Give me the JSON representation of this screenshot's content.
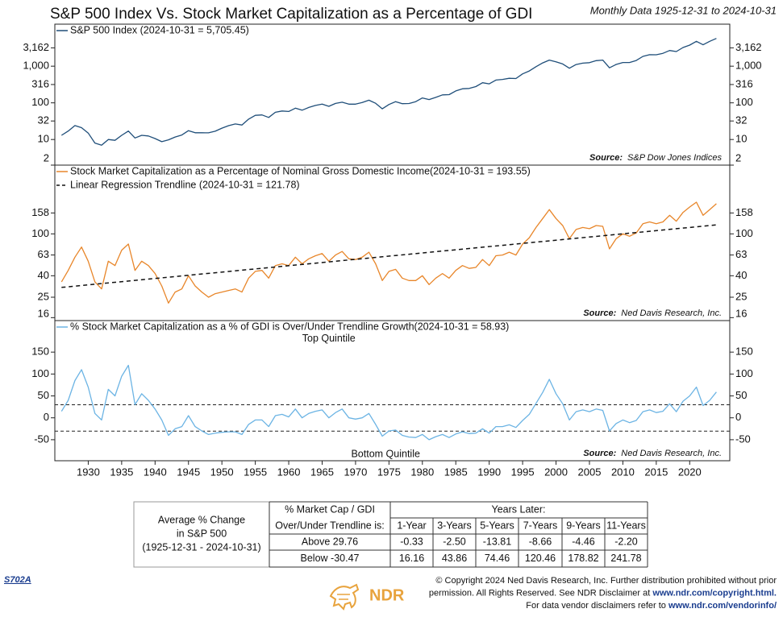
{
  "title": "S&P 500 Index Vs. Stock Market Capitalization as a Percentage of GDI",
  "subtitle": "Monthly Data 1925-12-31 to 2024-10-31",
  "chart_data": [
    {
      "type": "line",
      "log_scale": true,
      "xlim": [
        1925,
        2026
      ],
      "ylim": [
        2,
        14000
      ],
      "yticks": [
        {
          "value": 3162,
          "label": "3,162"
        },
        {
          "value": 1000,
          "label": "1,000"
        },
        316,
        100,
        32,
        10,
        2
      ],
      "x": [
        1926,
        1927,
        1928,
        1929,
        1930,
        1931,
        1932,
        1933,
        1934,
        1935,
        1936,
        1937,
        1938,
        1939,
        1940,
        1941,
        1942,
        1943,
        1944,
        1945,
        1946,
        1947,
        1948,
        1949,
        1950,
        1951,
        1952,
        1953,
        1954,
        1955,
        1956,
        1957,
        1958,
        1959,
        1960,
        1961,
        1962,
        1963,
        1964,
        1965,
        1966,
        1967,
        1968,
        1969,
        1970,
        1971,
        1972,
        1973,
        1974,
        1975,
        1976,
        1977,
        1978,
        1979,
        1980,
        1981,
        1982,
        1983,
        1984,
        1985,
        1986,
        1987,
        1988,
        1989,
        1990,
        1991,
        1992,
        1993,
        1994,
        1995,
        1996,
        1997,
        1998,
        1999,
        2000,
        2001,
        2002,
        2003,
        2004,
        2005,
        2006,
        2007,
        2008,
        2009,
        2010,
        2011,
        2012,
        2013,
        2014,
        2015,
        2016,
        2017,
        2018,
        2019,
        2020,
        2021,
        2022,
        2023,
        2024
      ],
      "series": [
        {
          "name": "S&P 500 Index (2024-10-31 = 5,705.45)",
          "color": "#1f4e79",
          "values": [
            13,
            17,
            24,
            21,
            15,
            8,
            7,
            10,
            9.5,
            13,
            17,
            11,
            13,
            12.5,
            10.6,
            8.7,
            9.8,
            11.7,
            13.3,
            17.4,
            15.3,
            15.3,
            15.2,
            16.8,
            20.4,
            23.8,
            26.6,
            24.8,
            36,
            45.5,
            46.7,
            40,
            55.2,
            59.9,
            58.1,
            71.6,
            63.1,
            75,
            84.8,
            92.4,
            80.3,
            96.5,
            103.9,
            92.1,
            92.2,
            102,
            118,
            97.6,
            68.6,
            90.2,
            107.5,
            95.1,
            96.1,
            107.9,
            135.8,
            122.6,
            140.6,
            164.9,
            167.2,
            211.3,
            242.2,
            247.1,
            277.7,
            353.4,
            330.2,
            417.1,
            435.7,
            466.5,
            459.3,
            615.9,
            740.7,
            970.4,
            1229,
            1469,
            1320,
            1148,
            880,
            1112,
            1212,
            1248,
            1418,
            1468,
            903,
            1115,
            1258,
            1258,
            1426,
            1848,
            2059,
            2044,
            2239,
            2674,
            2507,
            3231,
            3756,
            4766,
            3840,
            4770,
            5705.45
          ]
        }
      ],
      "source_label": "Source:",
      "source": "S&P Dow Jones Indices"
    },
    {
      "type": "line",
      "log_scale": true,
      "xlim": [
        1925,
        2026
      ],
      "ylim": [
        15,
        450
      ],
      "yticks": [
        158,
        100,
        63,
        40,
        25,
        16
      ],
      "x": [
        1926,
        1927,
        1928,
        1929,
        1930,
        1931,
        1932,
        1933,
        1934,
        1935,
        1936,
        1937,
        1938,
        1939,
        1940,
        1941,
        1942,
        1943,
        1944,
        1945,
        1946,
        1947,
        1948,
        1949,
        1950,
        1951,
        1952,
        1953,
        1954,
        1955,
        1956,
        1957,
        1958,
        1959,
        1960,
        1961,
        1962,
        1963,
        1964,
        1965,
        1966,
        1967,
        1968,
        1969,
        1970,
        1971,
        1972,
        1973,
        1974,
        1975,
        1976,
        1977,
        1978,
        1979,
        1980,
        1981,
        1982,
        1983,
        1984,
        1985,
        1986,
        1987,
        1988,
        1989,
        1990,
        1991,
        1992,
        1993,
        1994,
        1995,
        1996,
        1997,
        1998,
        1999,
        2000,
        2001,
        2002,
        2003,
        2004,
        2005,
        2006,
        2007,
        2008,
        2009,
        2010,
        2011,
        2012,
        2013,
        2014,
        2015,
        2016,
        2017,
        2018,
        2019,
        2020,
        2021,
        2022,
        2023,
        2024
      ],
      "series": [
        {
          "name": "Stock Market Capitalization as a Percentage of Nominal Gross Domestic Income(2024-10-31 = 193.55)",
          "color": "#e8862a",
          "values": [
            35,
            45,
            60,
            75,
            55,
            35,
            30,
            55,
            50,
            70,
            80,
            45,
            55,
            50,
            42,
            32,
            22,
            28,
            30,
            40,
            32,
            28,
            25,
            27,
            28,
            29,
            30,
            28,
            38,
            44,
            45,
            38,
            50,
            52,
            50,
            60,
            52,
            58,
            62,
            65,
            55,
            63,
            68,
            58,
            57,
            60,
            67,
            52,
            36,
            44,
            46,
            38,
            36,
            36,
            40,
            33,
            38,
            42,
            38,
            45,
            50,
            47,
            48,
            57,
            50,
            62,
            63,
            67,
            63,
            80,
            92,
            115,
            140,
            170,
            140,
            120,
            90,
            110,
            115,
            112,
            120,
            118,
            72,
            90,
            100,
            95,
            102,
            125,
            130,
            125,
            130,
            150,
            132,
            160,
            180,
            200,
            150,
            170,
            193.55
          ]
        },
        {
          "name": "Linear Regression Trendline (2024-10-31 = 121.78)",
          "color": "#111111",
          "dash": true,
          "x": [
            1926,
            2024
          ],
          "values": [
            31,
            121.78
          ]
        }
      ],
      "source_label": "Source:",
      "source": "Ned Davis Research, Inc."
    },
    {
      "type": "line",
      "log_scale": false,
      "xlim": [
        1925,
        2026
      ],
      "ylim": [
        -98,
        222
      ],
      "yticks": [
        150,
        100,
        50,
        0,
        -50
      ],
      "xticks": [
        1930,
        1935,
        1940,
        1945,
        1950,
        1955,
        1960,
        1965,
        1970,
        1975,
        1980,
        1985,
        1990,
        1995,
        2000,
        2005,
        2010,
        2015,
        2020
      ],
      "x": [
        1926,
        1927,
        1928,
        1929,
        1930,
        1931,
        1932,
        1933,
        1934,
        1935,
        1936,
        1937,
        1938,
        1939,
        1940,
        1941,
        1942,
        1943,
        1944,
        1945,
        1946,
        1947,
        1948,
        1949,
        1950,
        1951,
        1952,
        1953,
        1954,
        1955,
        1956,
        1957,
        1958,
        1959,
        1960,
        1961,
        1962,
        1963,
        1964,
        1965,
        1966,
        1967,
        1968,
        1969,
        1970,
        1971,
        1972,
        1973,
        1974,
        1975,
        1976,
        1977,
        1978,
        1979,
        1980,
        1981,
        1982,
        1983,
        1984,
        1985,
        1986,
        1987,
        1988,
        1989,
        1990,
        1991,
        1992,
        1993,
        1994,
        1995,
        1996,
        1997,
        1998,
        1999,
        2000,
        2001,
        2002,
        2003,
        2004,
        2005,
        2006,
        2007,
        2008,
        2009,
        2010,
        2011,
        2012,
        2013,
        2014,
        2015,
        2016,
        2017,
        2018,
        2019,
        2020,
        2021,
        2022,
        2023,
        2024
      ],
      "series": [
        {
          "name": "% Stock Market Capitalization as a % of GDI is Over/Under Trendline Growth(2024-10-31 = 58.93)",
          "color": "#6cb4e4",
          "values": [
            15,
            40,
            85,
            110,
            70,
            10,
            -5,
            65,
            50,
            95,
            120,
            30,
            55,
            40,
            20,
            -5,
            -40,
            -25,
            -20,
            5,
            -20,
            -30,
            -38,
            -35,
            -33,
            -32,
            -32,
            -38,
            -15,
            -5,
            -5,
            -20,
            5,
            8,
            2,
            20,
            0,
            10,
            15,
            18,
            0,
            12,
            20,
            0,
            -3,
            0,
            10,
            -15,
            -42,
            -30,
            -28,
            -40,
            -44,
            -45,
            -38,
            -50,
            -43,
            -38,
            -45,
            -37,
            -32,
            -36,
            -35,
            -25,
            -35,
            -20,
            -20,
            -16,
            -22,
            -6,
            8,
            33,
            58,
            88,
            55,
            32,
            -5,
            14,
            18,
            14,
            20,
            17,
            -30,
            -13,
            -5,
            -11,
            -6,
            14,
            18,
            12,
            15,
            32,
            14,
            38,
            50,
            70,
            28,
            40,
            58.93
          ]
        }
      ],
      "reference_lines": [
        29.76,
        -30.47
      ],
      "annotations": [
        "Top Quintile",
        "Bottom Quintile"
      ],
      "source_label": "Source:",
      "source": "Ned Davis Research, Inc."
    }
  ],
  "table": {
    "row_header": [
      "Average % Change",
      "in S&P 500",
      "(1925-12-31 - 2024-10-31)"
    ],
    "column_header": [
      "% Market Cap / GDI",
      "Over/Under Trendline is:"
    ],
    "group_header": "Years Later:",
    "columns": [
      "1-Year",
      "3-Years",
      "5-Years",
      "7-Years",
      "9-Years",
      "11-Years"
    ],
    "rows": [
      {
        "label": "Above 29.76",
        "cells": [
          "-0.33",
          "-2.50",
          "-13.81",
          "-8.66",
          "-4.46",
          "-2.20"
        ]
      },
      {
        "label": "Below -30.47",
        "cells": [
          "16.16",
          "43.86",
          "74.46",
          "120.46",
          "178.82",
          "241.78"
        ]
      }
    ]
  },
  "footer": {
    "code": "S702A",
    "logo": "NDR",
    "copyright": [
      [
        "© Copyright 2024 Ned Davis Research, Inc. Further distribution prohibited without prior"
      ],
      [
        "permission. All Rights Reserved. See NDR Disclaimer at ",
        "www.ndr.com/copyright.html."
      ],
      [
        "For data vendor disclaimers refer to ",
        "www.ndr.com/vendorinfo/"
      ]
    ]
  }
}
